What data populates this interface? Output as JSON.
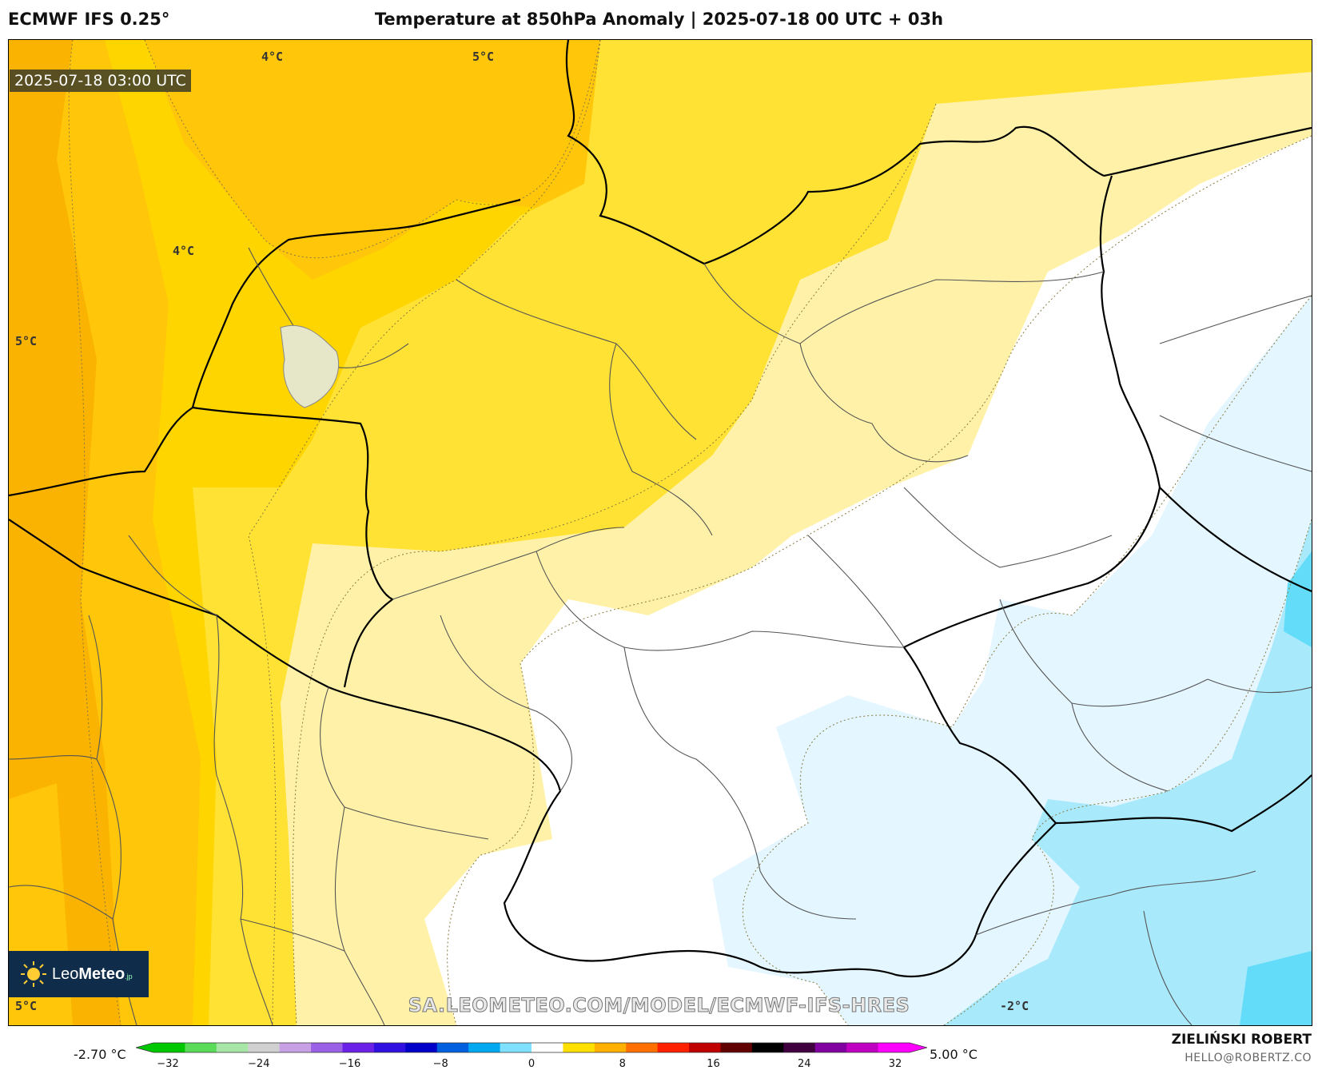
{
  "header": {
    "model": "ECMWF IFS 0.25°",
    "title": "Temperature at 850hPa Anomaly | 2025-07-18 00 UTC + 03h"
  },
  "map": {
    "valid_time": "2025-07-18 03:00 UTC",
    "contour_labels": [
      "4°C",
      "5°C",
      "4°C",
      "5°C",
      "5°C",
      "-2°C"
    ],
    "watermark": "SA.LEOMETEO.COM/MODEL/ECMWF-IFS-HRES",
    "colors": {
      "anom_5": "#f9b300",
      "anom_4": "#ffc60a",
      "anom_3": "#ffd500",
      "anom_2": "#ffe233",
      "anom_1": "#fff2a8",
      "anom_0": "#ffffff",
      "anom_m1": "#e4f6ff",
      "anom_m2": "#a8eafc",
      "anom_m3": "#62dcf8"
    }
  },
  "logo": {
    "name": "LeoMeteo",
    "name_light": "Leo",
    "name_bold": "Meteo",
    "suffix": ".jp",
    "icon": "sun-icon"
  },
  "colorbar": {
    "min_label": "-2.70 °C",
    "max_label": "5.00 °C",
    "ticks": [
      "−32",
      "−24",
      "−16",
      "−8",
      "0",
      "8",
      "16",
      "24",
      "32"
    ],
    "colors": [
      "#00c800",
      "#5adc5a",
      "#a8e6a8",
      "#d0d0d0",
      "#c8a0e6",
      "#9a60e6",
      "#6a20e6",
      "#3010e0",
      "#0000c8",
      "#0060e0",
      "#00a8f0",
      "#80e0ff",
      "#ffffff",
      "#ffe000",
      "#ffb000",
      "#ff7000",
      "#ff2000",
      "#c00000",
      "#600000",
      "#000000",
      "#400040",
      "#8000a0",
      "#c000c0",
      "#ff00ff"
    ]
  },
  "credit": {
    "author": "ZIELIŃSKI ROBERT",
    "email": "HELLO@ROBERTZ.CO"
  }
}
